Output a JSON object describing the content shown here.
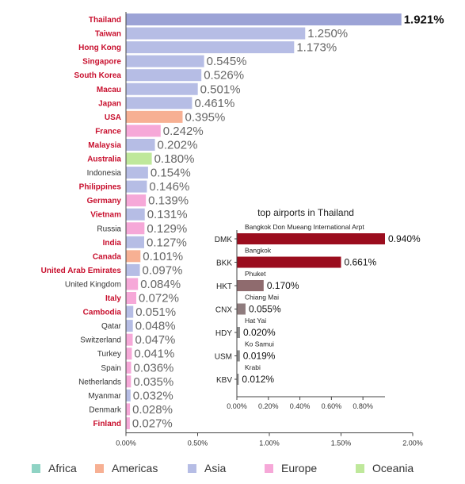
{
  "chart_data": [
    {
      "type": "bar",
      "orientation": "horizontal",
      "title": "",
      "categories": [
        "Thailand",
        "Taiwan",
        "Hong Kong",
        "Singapore",
        "South Korea",
        "Macau",
        "Japan",
        "USA",
        "France",
        "Malaysia",
        "Australia",
        "Indonesia",
        "Philippines",
        "Germany",
        "Vietnam",
        "Russia",
        "India",
        "Canada",
        "United Arab Emirates",
        "United Kingdom",
        "Italy",
        "Cambodia",
        "Qatar",
        "Switzerland",
        "Turkey",
        "Spain",
        "Netherlands",
        "Myanmar",
        "Denmark",
        "Finland"
      ],
      "values": [
        1.921,
        1.25,
        1.173,
        0.545,
        0.526,
        0.501,
        0.461,
        0.395,
        0.242,
        0.202,
        0.18,
        0.154,
        0.146,
        0.139,
        0.131,
        0.129,
        0.127,
        0.101,
        0.097,
        0.084,
        0.072,
        0.051,
        0.048,
        0.047,
        0.041,
        0.036,
        0.035,
        0.032,
        0.028,
        0.027
      ],
      "value_labels": [
        "1.921%",
        "1.250%",
        "1.173%",
        "0.545%",
        "0.526%",
        "0.501%",
        "0.461%",
        "0.395%",
        "0.242%",
        "0.202%",
        "0.180%",
        "0.154%",
        "0.146%",
        "0.139%",
        "0.131%",
        "0.129%",
        "0.127%",
        "0.101%",
        "0.097%",
        "0.084%",
        "0.072%",
        "0.051%",
        "0.048%",
        "0.047%",
        "0.041%",
        "0.036%",
        "0.035%",
        "0.032%",
        "0.028%",
        "0.027%"
      ],
      "regions": [
        "Asia",
        "Asia",
        "Asia",
        "Asia",
        "Asia",
        "Asia",
        "Asia",
        "Americas",
        "Europe",
        "Asia",
        "Oceania",
        "Asia",
        "Asia",
        "Europe",
        "Asia",
        "Europe",
        "Asia",
        "Americas",
        "Asia",
        "Europe",
        "Europe",
        "Asia",
        "Asia",
        "Europe",
        "Europe",
        "Europe",
        "Europe",
        "Asia",
        "Europe",
        "Europe"
      ],
      "highlighted": [
        true,
        true,
        true,
        true,
        true,
        true,
        true,
        true,
        true,
        true,
        true,
        false,
        true,
        true,
        true,
        false,
        true,
        true,
        true,
        false,
        true,
        true,
        false,
        false,
        false,
        false,
        false,
        false,
        false,
        true
      ],
      "xlim": [
        0,
        2.0
      ],
      "xticks": [
        "0.00%",
        "0.50%",
        "1.00%",
        "1.50%",
        "2.00%"
      ],
      "grid": false,
      "legend": {
        "placement": "bottom",
        "entries": [
          {
            "name": "Africa",
            "color": "#8fd3c4"
          },
          {
            "name": "Americas",
            "color": "#f7b093"
          },
          {
            "name": "Asia",
            "color": "#b6bde5"
          },
          {
            "name": "Europe",
            "color": "#f6a8d8"
          },
          {
            "name": "Oceania",
            "color": "#bfe89b"
          }
        ]
      },
      "colors": {
        "highlight_bar": "#9ca3d6",
        "highlight_label": "#c8102e",
        "normal_label": "#333333"
      }
    },
    {
      "type": "bar",
      "orientation": "horizontal",
      "title": "top airports in Thailand",
      "categories": [
        "DMK",
        "BKK",
        "HKT",
        "CNX",
        "HDY",
        "USM",
        "KBV"
      ],
      "airport_names": [
        "Bangkok Don Mueang International Arpt",
        "Bangkok",
        "Phuket",
        "Chiang Mai",
        "Hat Yai",
        "Ko Samui",
        "Krabi"
      ],
      "values": [
        0.94,
        0.661,
        0.17,
        0.055,
        0.02,
        0.019,
        0.012
      ],
      "value_labels": [
        "0.940%",
        "0.661%",
        "0.170%",
        "0.055%",
        "0.020%",
        "0.019%",
        "0.012%"
      ],
      "colors_per_bar": [
        "#9b0d1e",
        "#9b0d1e",
        "#8f6b6e",
        "#8f7c7e",
        "#8e8e8e",
        "#8e8e8e",
        "#8e8e8e"
      ],
      "xlim": [
        0,
        0.94
      ],
      "xticks": [
        "0.00%",
        "0.20%",
        "0.40%",
        "0.60%",
        "0.80%"
      ],
      "xtick_values": [
        0,
        0.2,
        0.4,
        0.6,
        0.8
      ]
    }
  ]
}
